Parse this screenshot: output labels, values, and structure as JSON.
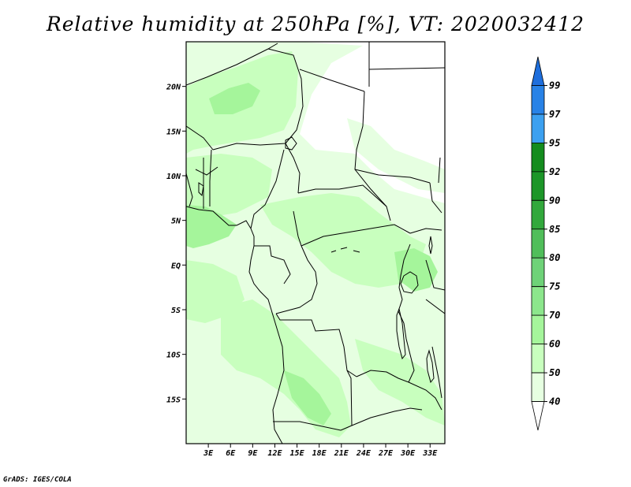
{
  "title": "Relative humidity at 250hPa [%], VT: 2020032412",
  "credit": "GrADS: IGES/COLA",
  "map": {
    "lon_range": [
      0,
      35
    ],
    "lat_range": [
      -20,
      25
    ],
    "lat_ticks": [
      {
        "value": 20,
        "label": "20N"
      },
      {
        "value": 15,
        "label": "15N"
      },
      {
        "value": 10,
        "label": "10N"
      },
      {
        "value": 5,
        "label": "5N"
      },
      {
        "value": 0,
        "label": "EQ"
      },
      {
        "value": -5,
        "label": "5S"
      },
      {
        "value": -10,
        "label": "10S"
      },
      {
        "value": -15,
        "label": "15S"
      }
    ],
    "lon_ticks": [
      {
        "value": 3,
        "label": "3E"
      },
      {
        "value": 6,
        "label": "6E"
      },
      {
        "value": 9,
        "label": "9E"
      },
      {
        "value": 12,
        "label": "12E"
      },
      {
        "value": 15,
        "label": "15E"
      },
      {
        "value": 18,
        "label": "18E"
      },
      {
        "value": 21,
        "label": "21E"
      },
      {
        "value": 24,
        "label": "24E"
      },
      {
        "value": 27,
        "label": "27E"
      },
      {
        "value": 30,
        "label": "30E"
      },
      {
        "value": 33,
        "label": "33E"
      }
    ]
  },
  "colorbar": {
    "levels": [
      "40",
      "50",
      "60",
      "70",
      "75",
      "80",
      "85",
      "90",
      "92",
      "95",
      "97",
      "99"
    ],
    "colors": [
      "#ffffff",
      "#e6ffe1",
      "#c8ffbe",
      "#a5f59b",
      "#8ce68c",
      "#6ed278",
      "#50be5a",
      "#32a83c",
      "#1c9628",
      "#148c1e",
      "#3ca0f0",
      "#2882e6",
      "#1e6edc"
    ]
  },
  "colors": {
    "shade_light": "#e6ffe1",
    "shade_mid": "#c8ffbe",
    "shade_high": "#a5f59b",
    "border": "#000000"
  }
}
